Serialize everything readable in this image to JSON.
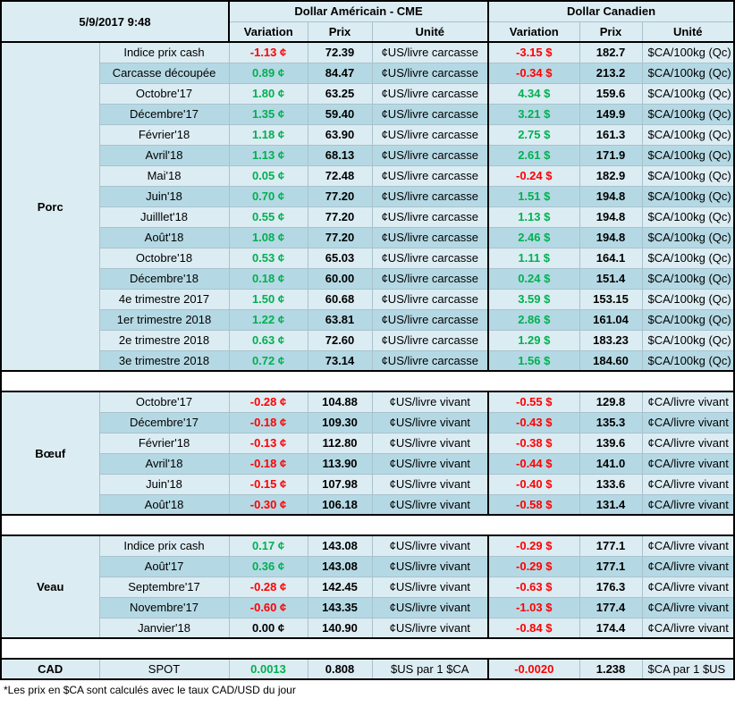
{
  "header": {
    "date": "5/9/2017 9:48",
    "usd_title": "Dollar Américain - CME",
    "cad_title": "Dollar Canadien",
    "col_variation": "Variation",
    "col_prix": "Prix",
    "col_unite": "Unité"
  },
  "groups": [
    {
      "title": "Porc",
      "rows": [
        {
          "label": "Indice prix cash",
          "usd_var": "-1.13 ¢",
          "usd_price": "72.39",
          "usd_unit": "¢US/livre carcasse",
          "cad_var": "-3.15 $",
          "cad_price": "182.7",
          "cad_unit": "$CA/100kg (Qc)"
        },
        {
          "label": "Carcasse découpée",
          "usd_var": "0.89 ¢",
          "usd_price": "84.47",
          "usd_unit": "¢US/livre carcasse",
          "cad_var": "-0.34 $",
          "cad_price": "213.2",
          "cad_unit": "$CA/100kg (Qc)"
        },
        {
          "label": "Octobre'17",
          "usd_var": "1.80 ¢",
          "usd_price": "63.25",
          "usd_unit": "¢US/livre carcasse",
          "cad_var": "4.34 $",
          "cad_price": "159.6",
          "cad_unit": "$CA/100kg (Qc)"
        },
        {
          "label": "Décembre'17",
          "usd_var": "1.35 ¢",
          "usd_price": "59.40",
          "usd_unit": "¢US/livre carcasse",
          "cad_var": "3.21 $",
          "cad_price": "149.9",
          "cad_unit": "$CA/100kg (Qc)"
        },
        {
          "label": "Février'18",
          "usd_var": "1.18 ¢",
          "usd_price": "63.90",
          "usd_unit": "¢US/livre carcasse",
          "cad_var": "2.75 $",
          "cad_price": "161.3",
          "cad_unit": "$CA/100kg (Qc)"
        },
        {
          "label": "Avril'18",
          "usd_var": "1.13 ¢",
          "usd_price": "68.13",
          "usd_unit": "¢US/livre carcasse",
          "cad_var": "2.61 $",
          "cad_price": "171.9",
          "cad_unit": "$CA/100kg (Qc)"
        },
        {
          "label": "Mai'18",
          "usd_var": "0.05 ¢",
          "usd_price": "72.48",
          "usd_unit": "¢US/livre carcasse",
          "cad_var": "-0.24 $",
          "cad_price": "182.9",
          "cad_unit": "$CA/100kg (Qc)"
        },
        {
          "label": "Juin'18",
          "usd_var": "0.70 ¢",
          "usd_price": "77.20",
          "usd_unit": "¢US/livre carcasse",
          "cad_var": "1.51 $",
          "cad_price": "194.8",
          "cad_unit": "$CA/100kg (Qc)"
        },
        {
          "label": "Juilllet'18",
          "usd_var": "0.55 ¢",
          "usd_price": "77.20",
          "usd_unit": "¢US/livre carcasse",
          "cad_var": "1.13 $",
          "cad_price": "194.8",
          "cad_unit": "$CA/100kg (Qc)"
        },
        {
          "label": "Août'18",
          "usd_var": "1.08 ¢",
          "usd_price": "77.20",
          "usd_unit": "¢US/livre carcasse",
          "cad_var": "2.46 $",
          "cad_price": "194.8",
          "cad_unit": "$CA/100kg (Qc)"
        },
        {
          "label": "Octobre'18",
          "usd_var": "0.53 ¢",
          "usd_price": "65.03",
          "usd_unit": "¢US/livre carcasse",
          "cad_var": "1.11 $",
          "cad_price": "164.1",
          "cad_unit": "$CA/100kg (Qc)"
        },
        {
          "label": "Décembre'18",
          "usd_var": "0.18 ¢",
          "usd_price": "60.00",
          "usd_unit": "¢US/livre carcasse",
          "cad_var": "0.24 $",
          "cad_price": "151.4",
          "cad_unit": "$CA/100kg (Qc)"
        },
        {
          "label": "4e trimestre 2017",
          "usd_var": "1.50 ¢",
          "usd_price": "60.68",
          "usd_unit": "¢US/livre carcasse",
          "cad_var": "3.59 $",
          "cad_price": "153.15",
          "cad_unit": "$CA/100kg (Qc)"
        },
        {
          "label": "1er trimestre 2018",
          "usd_var": "1.22 ¢",
          "usd_price": "63.81",
          "usd_unit": "¢US/livre carcasse",
          "cad_var": "2.86 $",
          "cad_price": "161.04",
          "cad_unit": "$CA/100kg (Qc)"
        },
        {
          "label": "2e trimestre 2018",
          "usd_var": "0.63 ¢",
          "usd_price": "72.60",
          "usd_unit": "¢US/livre carcasse",
          "cad_var": "1.29 $",
          "cad_price": "183.23",
          "cad_unit": "$CA/100kg (Qc)"
        },
        {
          "label": "3e trimestre 2018",
          "usd_var": "0.72 ¢",
          "usd_price": "73.14",
          "usd_unit": "¢US/livre carcasse",
          "cad_var": "1.56 $",
          "cad_price": "184.60",
          "cad_unit": "$CA/100kg (Qc)"
        }
      ]
    },
    {
      "title": "Bœuf",
      "rows": [
        {
          "label": "Octobre'17",
          "usd_var": "-0.28 ¢",
          "usd_price": "104.88",
          "usd_unit": "¢US/livre vivant",
          "cad_var": "-0.55 $",
          "cad_price": "129.8",
          "cad_unit": "¢CA/livre vivant"
        },
        {
          "label": "Décembre'17",
          "usd_var": "-0.18 ¢",
          "usd_price": "109.30",
          "usd_unit": "¢US/livre vivant",
          "cad_var": "-0.43 $",
          "cad_price": "135.3",
          "cad_unit": "¢CA/livre vivant"
        },
        {
          "label": "Février'18",
          "usd_var": "-0.13 ¢",
          "usd_price": "112.80",
          "usd_unit": "¢US/livre vivant",
          "cad_var": "-0.38 $",
          "cad_price": "139.6",
          "cad_unit": "¢CA/livre vivant"
        },
        {
          "label": "Avril'18",
          "usd_var": "-0.18 ¢",
          "usd_price": "113.90",
          "usd_unit": "¢US/livre vivant",
          "cad_var": "-0.44 $",
          "cad_price": "141.0",
          "cad_unit": "¢CA/livre vivant"
        },
        {
          "label": "Juin'18",
          "usd_var": "-0.15 ¢",
          "usd_price": "107.98",
          "usd_unit": "¢US/livre vivant",
          "cad_var": "-0.40 $",
          "cad_price": "133.6",
          "cad_unit": "¢CA/livre vivant"
        },
        {
          "label": "Août'18",
          "usd_var": "-0.30 ¢",
          "usd_price": "106.18",
          "usd_unit": "¢US/livre vivant",
          "cad_var": "-0.58 $",
          "cad_price": "131.4",
          "cad_unit": "¢CA/livre vivant"
        }
      ]
    },
    {
      "title": "Veau",
      "rows": [
        {
          "label": "Indice prix cash",
          "usd_var": "0.17 ¢",
          "usd_price": "143.08",
          "usd_unit": "¢US/livre vivant",
          "cad_var": "-0.29 $",
          "cad_price": "177.1",
          "cad_unit": "¢CA/livre vivant"
        },
        {
          "label": "Août'17",
          "usd_var": "0.36 ¢",
          "usd_price": "143.08",
          "usd_unit": "¢US/livre vivant",
          "cad_var": "-0.29 $",
          "cad_price": "177.1",
          "cad_unit": "¢CA/livre vivant"
        },
        {
          "label": "Septembre'17",
          "usd_var": "-0.28 ¢",
          "usd_price": "142.45",
          "usd_unit": "¢US/livre vivant",
          "cad_var": "-0.63 $",
          "cad_price": "176.3",
          "cad_unit": "¢CA/livre vivant"
        },
        {
          "label": "Novembre'17",
          "usd_var": "-0.60 ¢",
          "usd_price": "143.35",
          "usd_unit": "¢US/livre vivant",
          "cad_var": "-1.03 $",
          "cad_price": "177.4",
          "cad_unit": "¢CA/livre vivant"
        },
        {
          "label": "Janvier'18",
          "usd_var": "0.00 ¢",
          "usd_price": "140.90",
          "usd_unit": "¢US/livre vivant",
          "cad_var": "-0.84 $",
          "cad_price": "174.4",
          "cad_unit": "¢CA/livre vivant"
        }
      ]
    }
  ],
  "cad": {
    "title": "CAD",
    "label": "SPOT",
    "usd_var": "0.0013",
    "usd_price": "0.808",
    "usd_unit": "$US par 1 $CA",
    "cad_var": "-0.0020",
    "cad_price": "1.238",
    "cad_unit": "$CA par 1 $US"
  },
  "footnote": "*Les  prix en $CA sont calculés avec le taux CAD/USD du jour",
  "colors": {
    "positive": "#00b050",
    "negative": "#ff0000",
    "row_light": "#dcecf3",
    "row_dark": "#b5d9e4"
  }
}
